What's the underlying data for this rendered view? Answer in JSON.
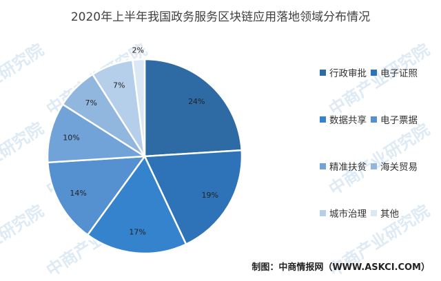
{
  "title": "2020年上半年我国政务服务区块链应用落地领域分布情况",
  "source": "制图：中商情报网（WWW.ASKCI.COM）",
  "watermark": "中商产业研究院",
  "chart_data": {
    "type": "pie",
    "title": "2020年上半年我国政务服务区块链应用落地领域分布情况",
    "legend_position": "right",
    "slices": [
      {
        "label": "行政审批",
        "value": 24,
        "display": "24%",
        "color": "#2e6aa4"
      },
      {
        "label": "电子证照",
        "value": 19,
        "display": "19%",
        "color": "#2e73b7"
      },
      {
        "label": "数据共享",
        "value": 17,
        "display": "17%",
        "color": "#3483cc"
      },
      {
        "label": "电子票据",
        "value": 14,
        "display": "14%",
        "color": "#5590d0"
      },
      {
        "label": "精准扶贫",
        "value": 10,
        "display": "10%",
        "color": "#72a3d8"
      },
      {
        "label": "海关贸易",
        "value": 7,
        "display": "7%",
        "color": "#92b7df"
      },
      {
        "label": "城市治理",
        "value": 7,
        "display": "7%",
        "color": "#b5cfea"
      },
      {
        "label": "其他",
        "value": 2,
        "display": "2%",
        "color": "#dae7f4"
      }
    ]
  }
}
